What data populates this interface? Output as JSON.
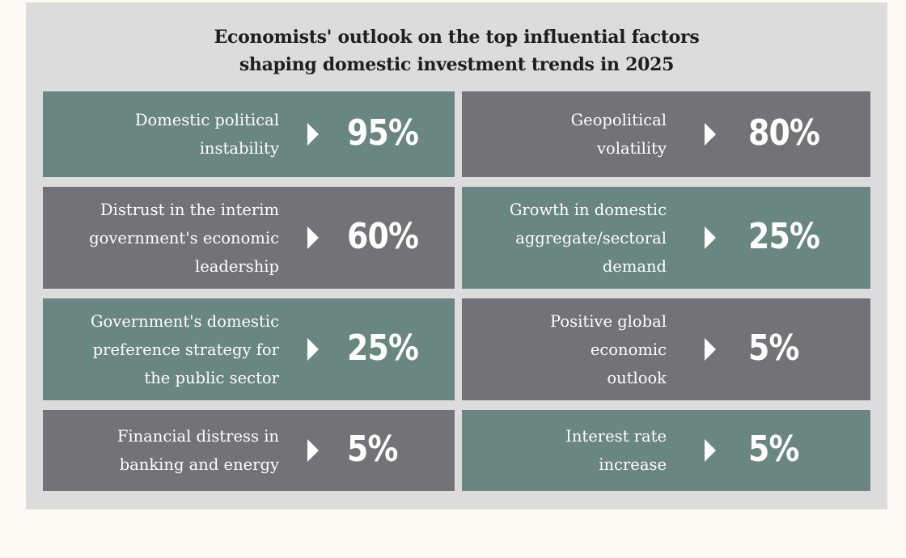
{
  "title": {
    "line1": "Economists' outlook on the top influential factors",
    "line2": "shaping domestic investment trends in 2025"
  },
  "colors": {
    "panel_background": "#dcdcdc",
    "teal_card": "#6a8681",
    "gray_card": "#737277",
    "text": "#ffffff"
  },
  "chart_data": {
    "type": "table",
    "title": "Economists' outlook on the top influential factors shaping domestic investment trends in 2025",
    "unit": "%",
    "categories": [
      "Domestic political instability",
      "Geopolitical volatility",
      "Distrust in the interim government's economic leadership",
      "Growth in domestic aggregate/sectoral demand",
      "Government's domestic preference strategy for the public sector",
      "Positive global economic outlook",
      "Financial distress in banking and energy",
      "Interest rate increase"
    ],
    "values": [
      95,
      80,
      60,
      25,
      25,
      5,
      5,
      5
    ]
  },
  "factors": [
    {
      "lines": [
        "Domestic political",
        "instability"
      ],
      "value": "95%",
      "color": "teal"
    },
    {
      "lines": [
        "Geopolitical",
        "volatility"
      ],
      "value": "80%",
      "color": "gray"
    },
    {
      "lines": [
        "Distrust in the interim",
        "government's economic",
        "leadership"
      ],
      "value": "60%",
      "color": "gray"
    },
    {
      "lines": [
        "Growth in domestic",
        "aggregate/sectoral",
        "demand"
      ],
      "value": "25%",
      "color": "teal"
    },
    {
      "lines": [
        "Government's domestic",
        "preference strategy for",
        "the public sector"
      ],
      "value": "25%",
      "color": "teal"
    },
    {
      "lines": [
        "Positive global",
        "economic",
        "outlook"
      ],
      "value": "5%",
      "color": "gray"
    },
    {
      "lines": [
        "Financial distress in",
        "banking and energy"
      ],
      "value": "5%",
      "color": "gray"
    },
    {
      "lines": [
        "Interest rate",
        "increase"
      ],
      "value": "5%",
      "color": "teal"
    }
  ]
}
